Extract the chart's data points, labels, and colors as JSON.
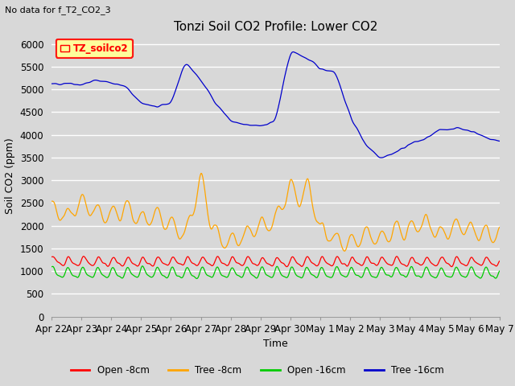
{
  "title": "Tonzi Soil CO2 Profile: Lower CO2",
  "subtitle": "No data for f_T2_CO2_3",
  "ylabel": "Soil CO2 (ppm)",
  "xlabel": "Time",
  "legend_box_label": "TZ_soilco2",
  "ylim": [
    0,
    6200
  ],
  "yticks": [
    0,
    500,
    1000,
    1500,
    2000,
    2500,
    3000,
    3500,
    4000,
    4500,
    5000,
    5500,
    6000
  ],
  "xtick_labels": [
    "Apr 22",
    "Apr 23",
    "Apr 24",
    "Apr 25",
    "Apr 26",
    "Apr 27",
    "Apr 28",
    "Apr 29",
    "Apr 30",
    "May 1",
    "May 2",
    "May 3",
    "May 4",
    "May 5",
    "May 6",
    "May 7"
  ],
  "series": {
    "open_8cm": {
      "color": "#ff0000",
      "label": "Open -8cm"
    },
    "tree_8cm": {
      "color": "#ffa500",
      "label": "Tree -8cm"
    },
    "open_16cm": {
      "color": "#00cc00",
      "label": "Open -16cm"
    },
    "tree_16cm": {
      "color": "#0000cc",
      "label": "Tree -16cm"
    }
  },
  "background_color": "#d8d8d8",
  "plot_background": "#d8d8d8",
  "grid_color": "#ffffff",
  "title_fontsize": 11,
  "axis_fontsize": 9,
  "tick_fontsize": 8.5
}
